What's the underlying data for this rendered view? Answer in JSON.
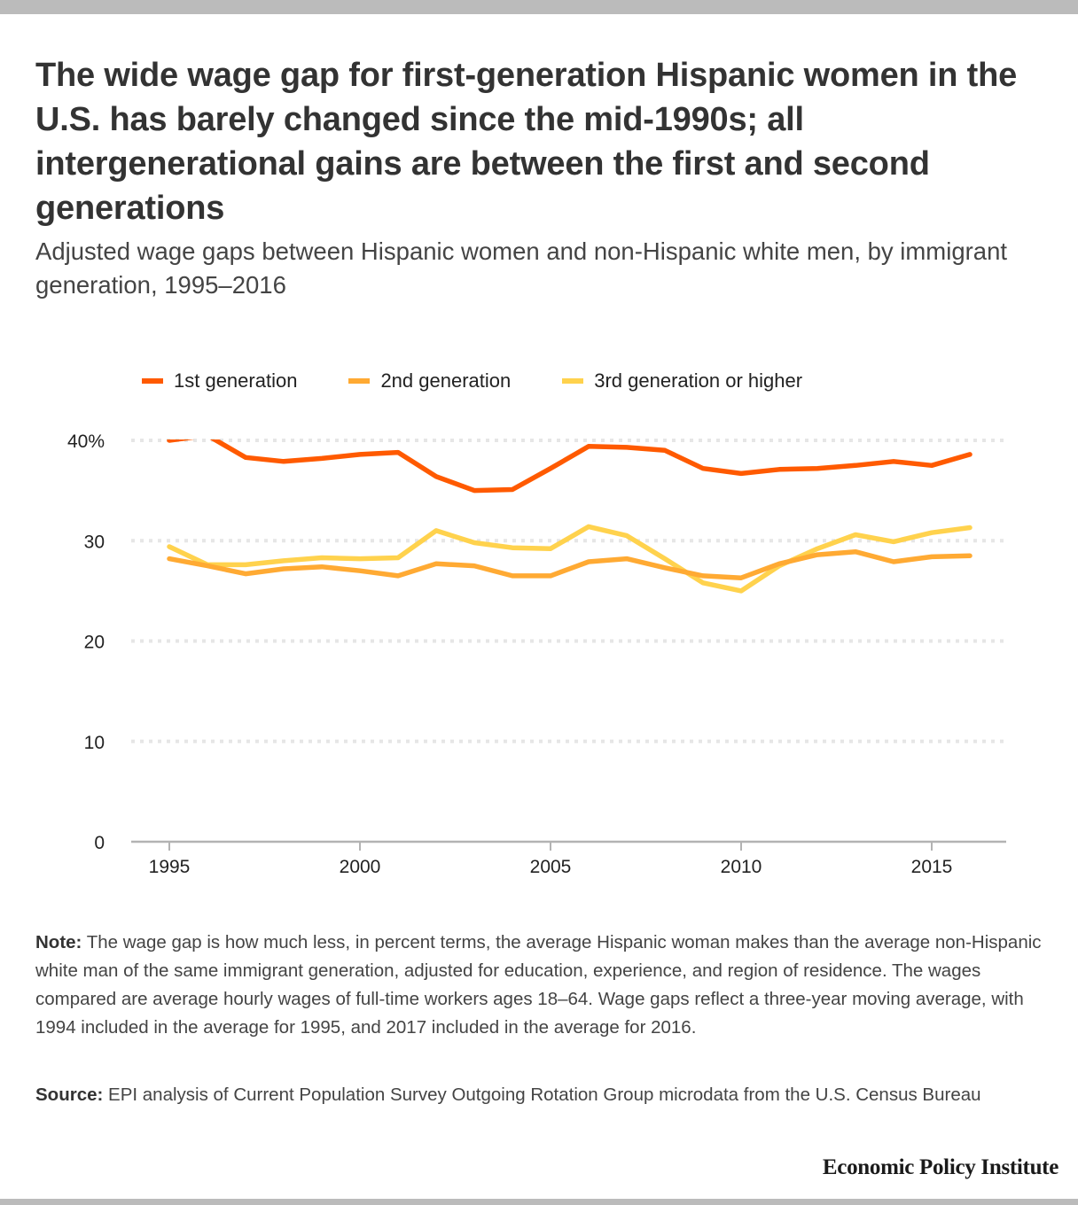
{
  "header": {
    "title": "The wide wage gap for first-generation Hispanic women in the U.S. has barely changed since the mid-1990s; all intergenerational gains are between the first and second generations",
    "subtitle": "Adjusted wage gaps between Hispanic women and non-Hispanic white men, by immigrant generation, 1995–2016"
  },
  "legend": [
    {
      "label": "1st generation",
      "color": "#ff5a00"
    },
    {
      "label": "2nd generation",
      "color": "#ffaa33"
    },
    {
      "label": "3rd generation or higher",
      "color": "#ffd24d"
    }
  ],
  "footer": {
    "note_label": "Note:",
    "note_text": "The wage gap is how much less, in percent terms, the average Hispanic woman makes than the average non-Hispanic white man of the same immigrant generation, adjusted for education, experience, and region of residence. The wages compared are average hourly wages of full-time workers ages 18–64. Wage gaps reflect a three-year moving average, with 1994 included in the average for 1995, and 2017 included in the average for 2016.",
    "source_label": "Source:",
    "source_text": "EPI analysis of Current Population Survey Outgoing Rotation Group microdata from the U.S. Census Bureau",
    "brand": "Economic Policy Institute"
  },
  "chart_data": {
    "type": "line",
    "title": "The wide wage gap for first-generation Hispanic women in the U.S. has barely changed since the mid-1990s; all intergenerational gains are between the first and second generations",
    "subtitle": "Adjusted wage gaps between Hispanic women and non-Hispanic white men, by immigrant generation, 1995–2016",
    "xlabel": "",
    "ylabel": "",
    "x": [
      1995,
      1996,
      1997,
      1998,
      1999,
      2000,
      2001,
      2002,
      2003,
      2004,
      2005,
      2006,
      2007,
      2008,
      2009,
      2010,
      2011,
      2012,
      2013,
      2014,
      2015,
      2016
    ],
    "xlim": [
      1994.9,
      2017.1
    ],
    "ylim": [
      0,
      40
    ],
    "x_ticks": [
      1995,
      2000,
      2005,
      2010,
      2015
    ],
    "y_ticks": [
      0,
      10,
      20,
      30,
      40
    ],
    "y_tick_labels": [
      "0",
      "10",
      "20",
      "30",
      "40%"
    ],
    "grid": "horizontal-dotted",
    "legend_position": "top-left",
    "series": [
      {
        "name": "1st generation",
        "color": "#ff5a00",
        "values": [
          40.0,
          40.5,
          38.3,
          37.9,
          38.2,
          38.6,
          38.8,
          36.4,
          35.0,
          35.1,
          37.2,
          39.4,
          39.3,
          39.0,
          37.2,
          36.7,
          37.1,
          37.2,
          37.5,
          37.9,
          37.5,
          38.6
        ]
      },
      {
        "name": "2nd generation",
        "color": "#ffaa33",
        "values": [
          28.2,
          27.5,
          26.7,
          27.2,
          27.4,
          27.0,
          26.5,
          27.7,
          27.5,
          26.5,
          26.5,
          27.9,
          28.2,
          27.3,
          26.5,
          26.3,
          27.7,
          28.6,
          28.9,
          27.9,
          28.4,
          28.5
        ]
      },
      {
        "name": "3rd generation or higher",
        "color": "#ffd24d",
        "values": [
          29.4,
          27.6,
          27.6,
          28.0,
          28.3,
          28.2,
          28.3,
          31.0,
          29.8,
          29.3,
          29.2,
          31.4,
          30.5,
          28.2,
          25.8,
          25.0,
          27.5,
          29.2,
          30.6,
          29.9,
          30.8,
          31.3
        ]
      }
    ]
  }
}
